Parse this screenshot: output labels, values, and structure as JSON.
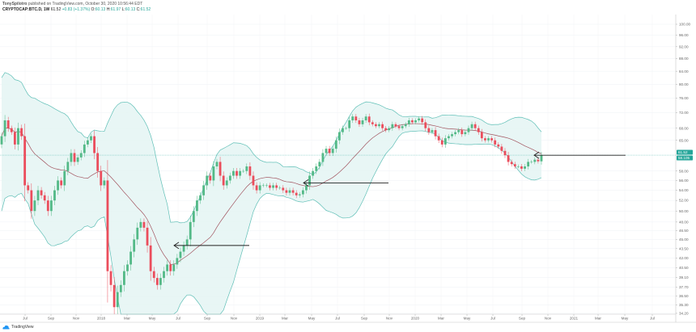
{
  "header": {
    "author": "TonySpilotro",
    "published": "published on TradingView.com, October 30, 2020 10:56:44 EDT",
    "symbol": "CRYPTOCAP:BTC.D, 1W",
    "last": "61.52",
    "change": "+0.83 (+1.37%)",
    "o_label": "O:",
    "o": "60.13",
    "h_label": "H:",
    "h": "61.97",
    "l_label": "L:",
    "l": "60.13",
    "c_label": "C:",
    "c": "61.52"
  },
  "branding": {
    "logo_text": "TradingView"
  },
  "colors": {
    "up": "#53b987",
    "down": "#eb4d5c",
    "band": "#5fbfb6",
    "band_fill": "#e4f5f3",
    "basis": "#a2545f",
    "badge": "#26a69a",
    "arrow": "#222222"
  },
  "badges": {
    "price": "61.52",
    "secondary": "58.105"
  },
  "chart_data": {
    "type": "candlestick",
    "interval": "1W",
    "yscale": "log",
    "ylim": [
      34.2,
      100
    ],
    "y_ticks": [
      "100.00",
      "96.00",
      "92.00",
      "88.00",
      "84.00",
      "80.00",
      "76.00",
      "72.00",
      "68.00",
      "65.00",
      "58.00",
      "56.00",
      "54.00",
      "52.00",
      "50.00",
      "48.00",
      "46.50",
      "45.00",
      "43.50",
      "42.00",
      "40.50",
      "39.10",
      "37.70",
      "36.50",
      "35.30",
      "34.20"
    ],
    "x_ticks": [
      "Jul",
      "Sep",
      "Nov",
      "2018",
      "Mar",
      "May",
      "Jul",
      "Sep",
      "Nov",
      "2019",
      "Mar",
      "May",
      "Jul",
      "Sep",
      "Nov",
      "2020",
      "Mar",
      "May",
      "Jul",
      "Sep",
      "Nov",
      "2021",
      "Mar",
      "May",
      "Jul"
    ],
    "indicator": "Bollinger Bands (20, 2)",
    "closes": [
      66,
      70,
      68,
      67,
      64,
      68,
      66,
      55,
      54,
      50,
      52,
      54,
      53,
      52,
      50,
      52,
      54,
      56,
      55,
      58,
      60,
      62,
      60,
      61,
      62,
      64,
      65,
      66,
      62,
      58,
      55,
      56,
      40,
      38,
      35,
      37,
      38,
      40,
      41,
      43,
      45,
      47,
      48,
      47,
      44,
      40,
      39,
      38,
      39,
      40,
      41,
      40,
      41,
      42,
      43,
      44,
      45,
      48,
      50,
      52,
      53,
      55,
      57,
      56,
      59,
      60,
      57,
      55,
      56,
      57,
      58,
      57,
      58,
      58,
      59,
      57,
      55,
      54,
      55,
      55,
      55,
      54.5,
      55,
      54.5,
      54.5,
      54,
      53.5,
      54,
      53.5,
      53,
      53.2,
      54,
      55,
      57,
      58,
      59,
      60,
      62,
      63,
      62,
      63,
      65,
      67,
      68,
      68,
      70,
      71,
      70,
      69,
      70,
      71,
      69.5,
      69,
      68.5,
      69,
      68,
      67.5,
      68,
      69,
      68.5,
      68,
      68.5,
      69,
      70,
      69.5,
      70,
      70.5,
      69.5,
      68,
      67,
      67.5,
      66,
      65,
      64,
      65.5,
      66,
      66.5,
      67,
      67.5,
      66.5,
      67,
      68,
      69,
      68,
      67,
      65.5,
      65,
      65.5,
      65,
      64,
      63.5,
      62.5,
      61.5,
      60,
      59.5,
      59,
      59,
      58.5,
      59,
      60,
      60,
      60.5,
      60.13,
      61.52
    ],
    "annotations": [
      {
        "type": "arrow",
        "points_to_price": 44.0,
        "direction": "left"
      },
      {
        "type": "arrow",
        "points_to_price": 55.5,
        "direction": "left"
      },
      {
        "type": "arrow",
        "points_to_price": 61.5,
        "direction": "left"
      }
    ]
  }
}
